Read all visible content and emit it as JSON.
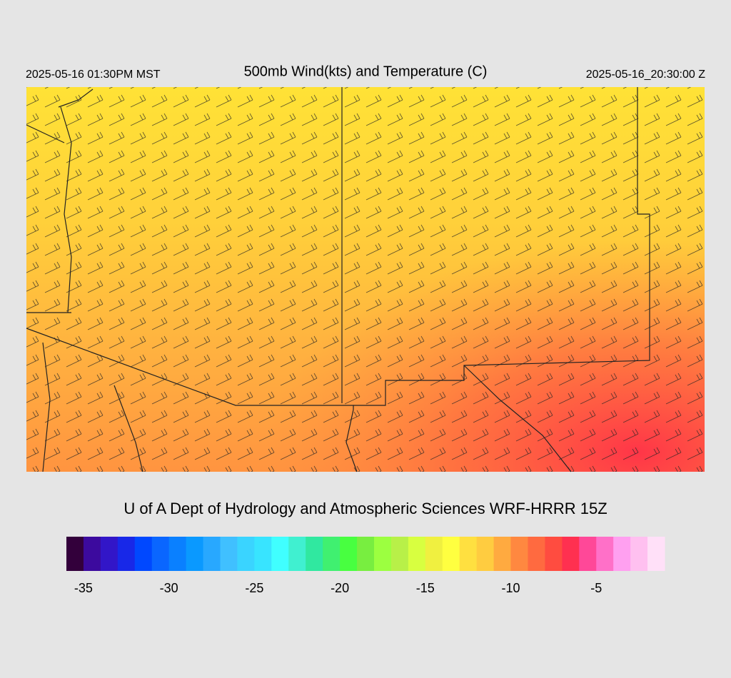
{
  "header": {
    "left": "2025-05-16 01:30PM MST",
    "title": "500mb Wind(kts) and Temperature (C)",
    "right": "2025-05-16_20:30:00 Z"
  },
  "credit": "U of A Dept of Hydrology and Atmospheric Sciences WRF-HRRR 15Z",
  "colorbar": {
    "range": [
      -36,
      -1
    ],
    "ticks": [
      -35,
      -30,
      -25,
      -20,
      -15,
      -10,
      -5
    ],
    "colors": [
      "#33003b",
      "#3c0a9e",
      "#3216c8",
      "#1828e8",
      "#0048ff",
      "#0a66ff",
      "#0a80ff",
      "#0a99ff",
      "#28a8ff",
      "#40c0ff",
      "#3ad4ff",
      "#38e4ff",
      "#40ffff",
      "#40f0d0",
      "#30e8a0",
      "#40f070",
      "#48ff40",
      "#78ee40",
      "#9cff40",
      "#b8f048",
      "#d8ff40",
      "#f0f040",
      "#ffff40",
      "#ffe040",
      "#ffcc40",
      "#ffaa40",
      "#ff8840",
      "#ff6a40",
      "#ff4c40",
      "#ff3050",
      "#ff4898",
      "#ff70c8",
      "#ffa0f0",
      "#ffc0f0",
      "#ffe0f8"
    ]
  }
}
